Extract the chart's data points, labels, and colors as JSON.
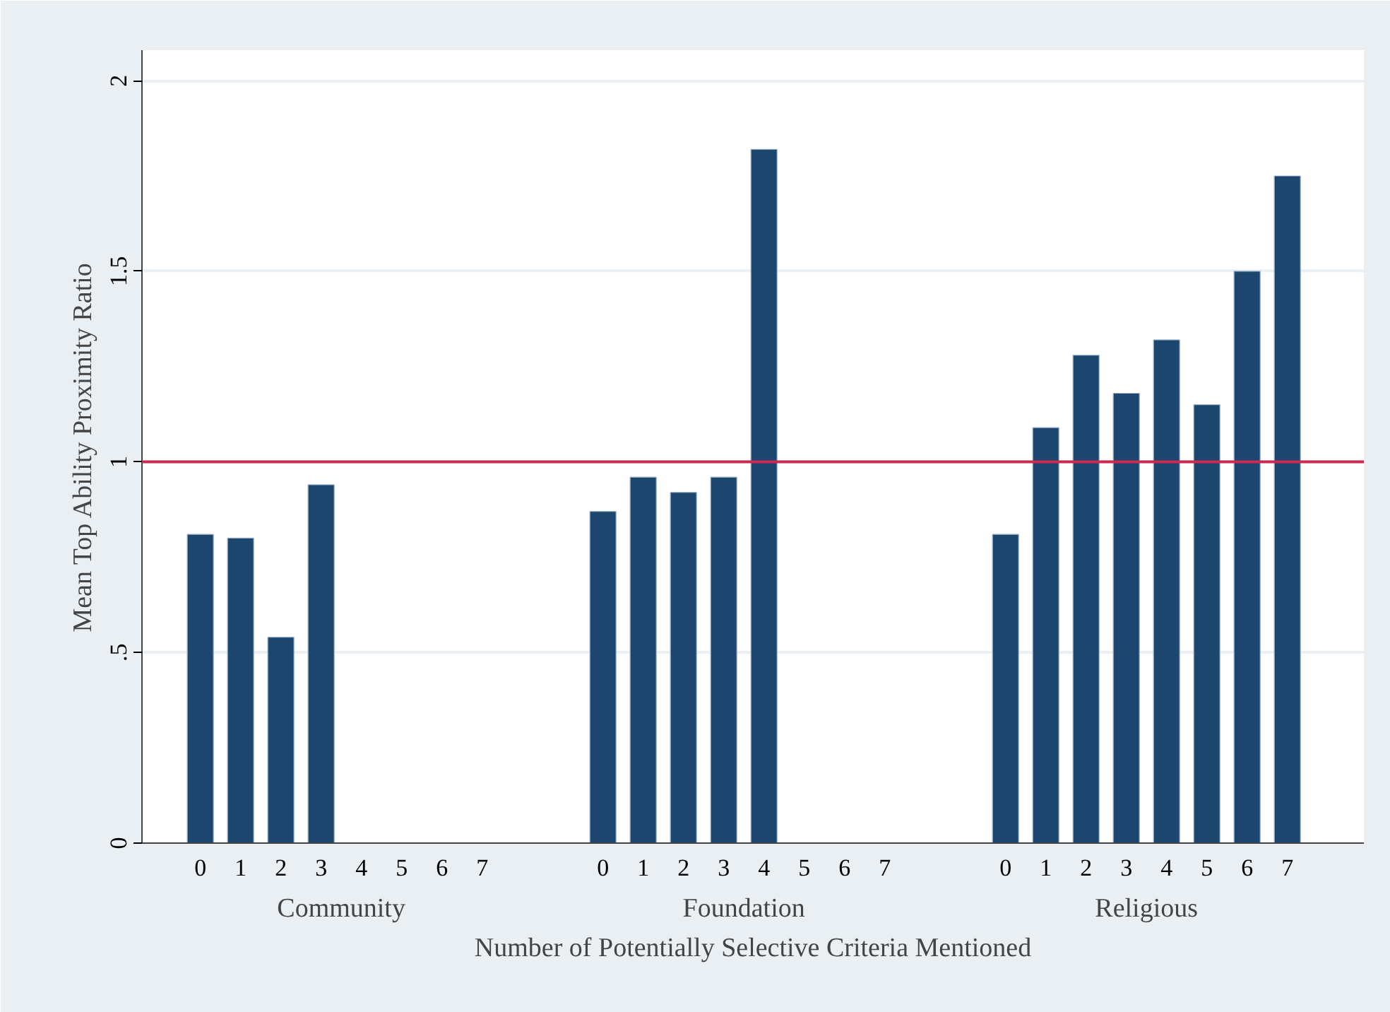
{
  "chart_data": {
    "type": "bar",
    "xlabel": "Number of Potentially Selective Criteria Mentioned",
    "ylabel": "Mean Top Ability Proximity Ratio",
    "categories": [
      "0",
      "1",
      "2",
      "3",
      "4",
      "5",
      "6",
      "7",
      null,
      null,
      "0",
      "1",
      "2",
      "3",
      "4",
      "5",
      "6",
      "7",
      null,
      null,
      "0",
      "1",
      "2",
      "3",
      "4",
      "5",
      "6",
      "7"
    ],
    "values": [
      0.81,
      0.8,
      0.54,
      0.94,
      null,
      null,
      null,
      null,
      null,
      null,
      0.87,
      0.96,
      0.92,
      0.96,
      1.82,
      null,
      null,
      null,
      null,
      null,
      0.81,
      1.09,
      1.28,
      1.18,
      1.32,
      1.15,
      1.5,
      1.75
    ],
    "color": "#1c466e",
    "annotations": [
      "Community",
      "Foundation",
      "Religious"
    ],
    "ylim": [
      0,
      2.08
    ],
    "yticks": [
      0,
      {
        "value": 0.5,
        "label": ".5"
      },
      1,
      1.5,
      2
    ],
    "ref_lines": [
      {
        "axis": "y",
        "value": 1,
        "color": "#cc2a52"
      }
    ],
    "grid": "y"
  }
}
